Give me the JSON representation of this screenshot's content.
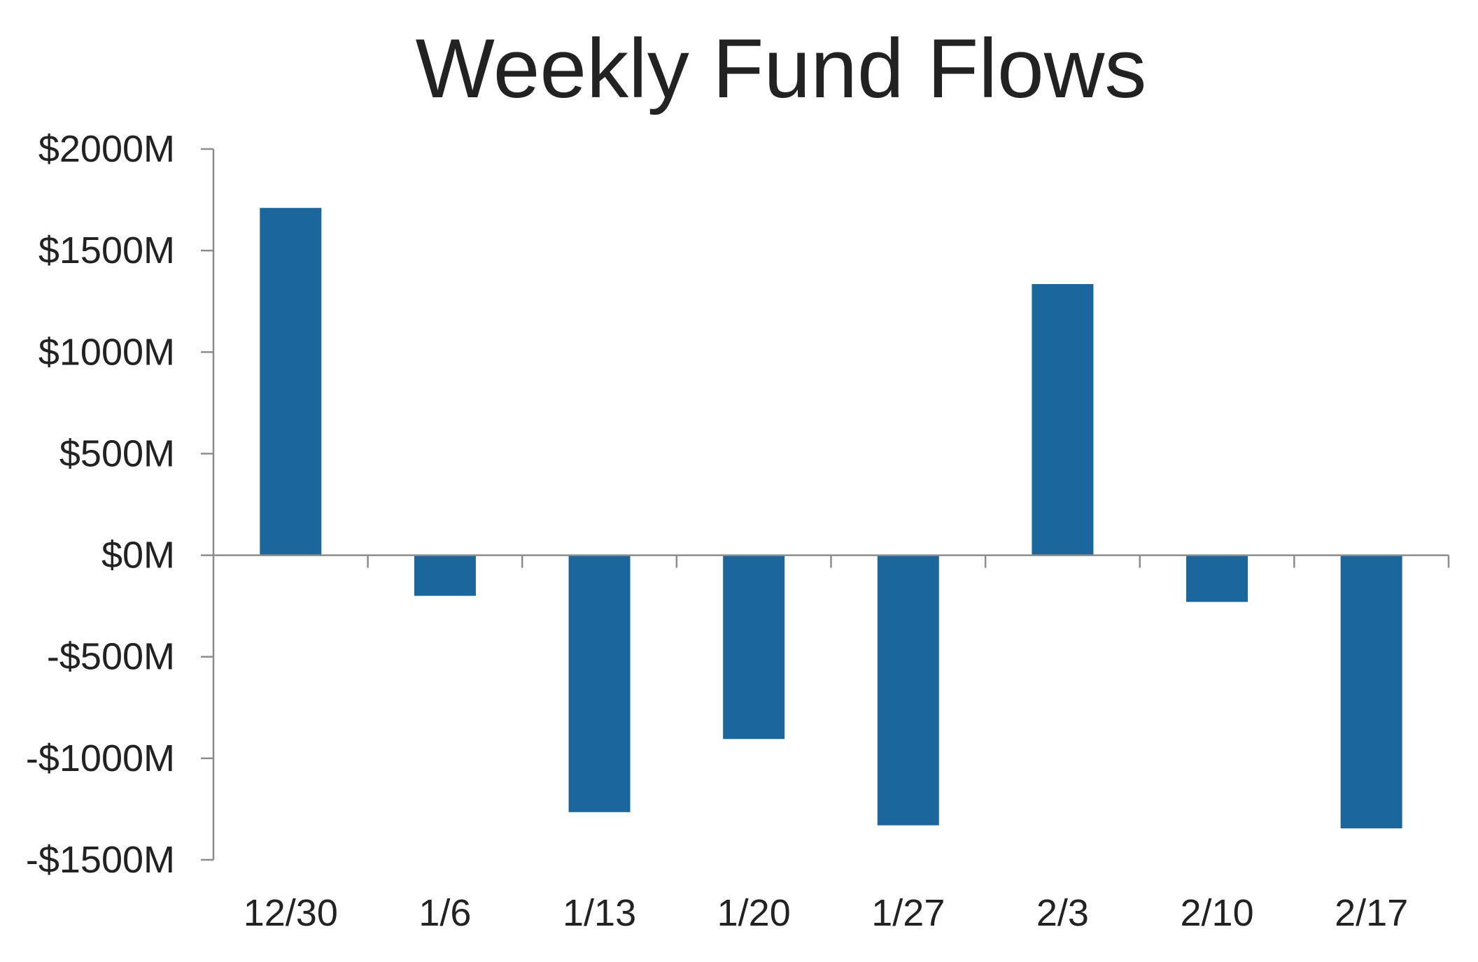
{
  "chart_data": {
    "type": "bar",
    "title": "Weekly Fund Flows",
    "xlabel": "",
    "ylabel": "",
    "categories": [
      "12/30",
      "1/6",
      "1/13",
      "1/20",
      "1/27",
      "2/3",
      "2/10",
      "2/17"
    ],
    "values": [
      1710,
      -200,
      -1265,
      -905,
      -1330,
      1335,
      -230,
      -1345
    ],
    "ylim": [
      -1500,
      2000
    ],
    "yticks": [
      2000,
      1500,
      1000,
      500,
      0,
      -500,
      -1000,
      -1500
    ],
    "ytick_labels": [
      "$2000M",
      "$1500M",
      "$1000M",
      "$500M",
      "$0M",
      "-$500M",
      "-$1000M",
      "-$1500M"
    ],
    "grid": false,
    "legend": "none",
    "colors": {
      "bar": "#1b679d",
      "axis": "#8c8c8c",
      "text": "#222222"
    }
  }
}
